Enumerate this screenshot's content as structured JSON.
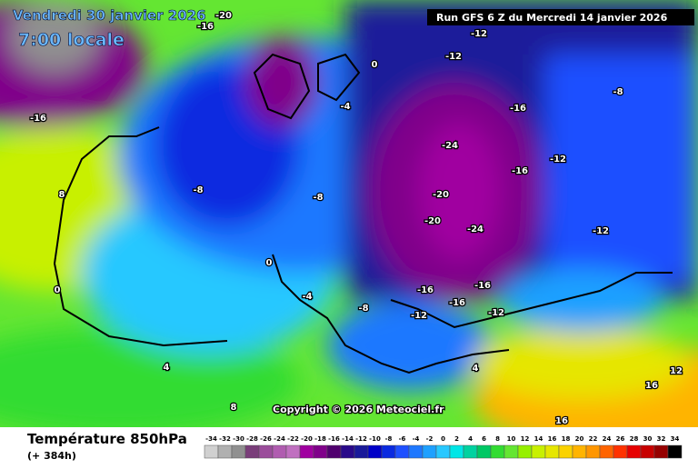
{
  "header": {
    "date": "Vendredi 30 janvier 2026",
    "time": "7:00 locale",
    "run": "Run GFS 6 Z du Mercredi 14 janvier 2026",
    "copyright": "Copyright © 2026 Meteociel.fr"
  },
  "footer": {
    "title": "Température 850hPa",
    "lead": "(+ 384h)"
  },
  "legend": {
    "values": [
      -34,
      -32,
      -30,
      -28,
      -26,
      -24,
      -22,
      -20,
      -18,
      -16,
      -14,
      -12,
      -10,
      -8,
      -6,
      -4,
      -2,
      0,
      2,
      4,
      6,
      8,
      10,
      12,
      14,
      16,
      18,
      20,
      22,
      24,
      26,
      28,
      30,
      32,
      34
    ],
    "colors": [
      "#d0d0d0",
      "#b0b0b0",
      "#909090",
      "#7a3d7a",
      "#9b4d9b",
      "#b05cb0",
      "#c070c0",
      "#a000a0",
      "#80008a",
      "#50006e",
      "#2a0a8a",
      "#1a1a9a",
      "#0000c8",
      "#0a2ae0",
      "#1e50ff",
      "#1e78ff",
      "#1ea0ff",
      "#28c8ff",
      "#00e6e6",
      "#00d2a0",
      "#00c864",
      "#32dc32",
      "#64e632",
      "#96f000",
      "#c8f000",
      "#e6e600",
      "#fad200",
      "#ffb400",
      "#ff9600",
      "#ff6400",
      "#ff3200",
      "#e60000",
      "#c80000",
      "#960000",
      "#000000"
    ]
  },
  "contour_labels": [
    -24,
    -24,
    -20,
    -20,
    -16,
    -16,
    -16,
    -16,
    -16,
    -12,
    -12,
    -12,
    -12,
    -12,
    -12,
    -8,
    -8,
    -8,
    -8,
    -4,
    -4,
    0,
    0,
    0,
    4,
    4,
    8,
    8,
    12,
    16,
    16,
    -16,
    -20,
    -16
  ]
}
